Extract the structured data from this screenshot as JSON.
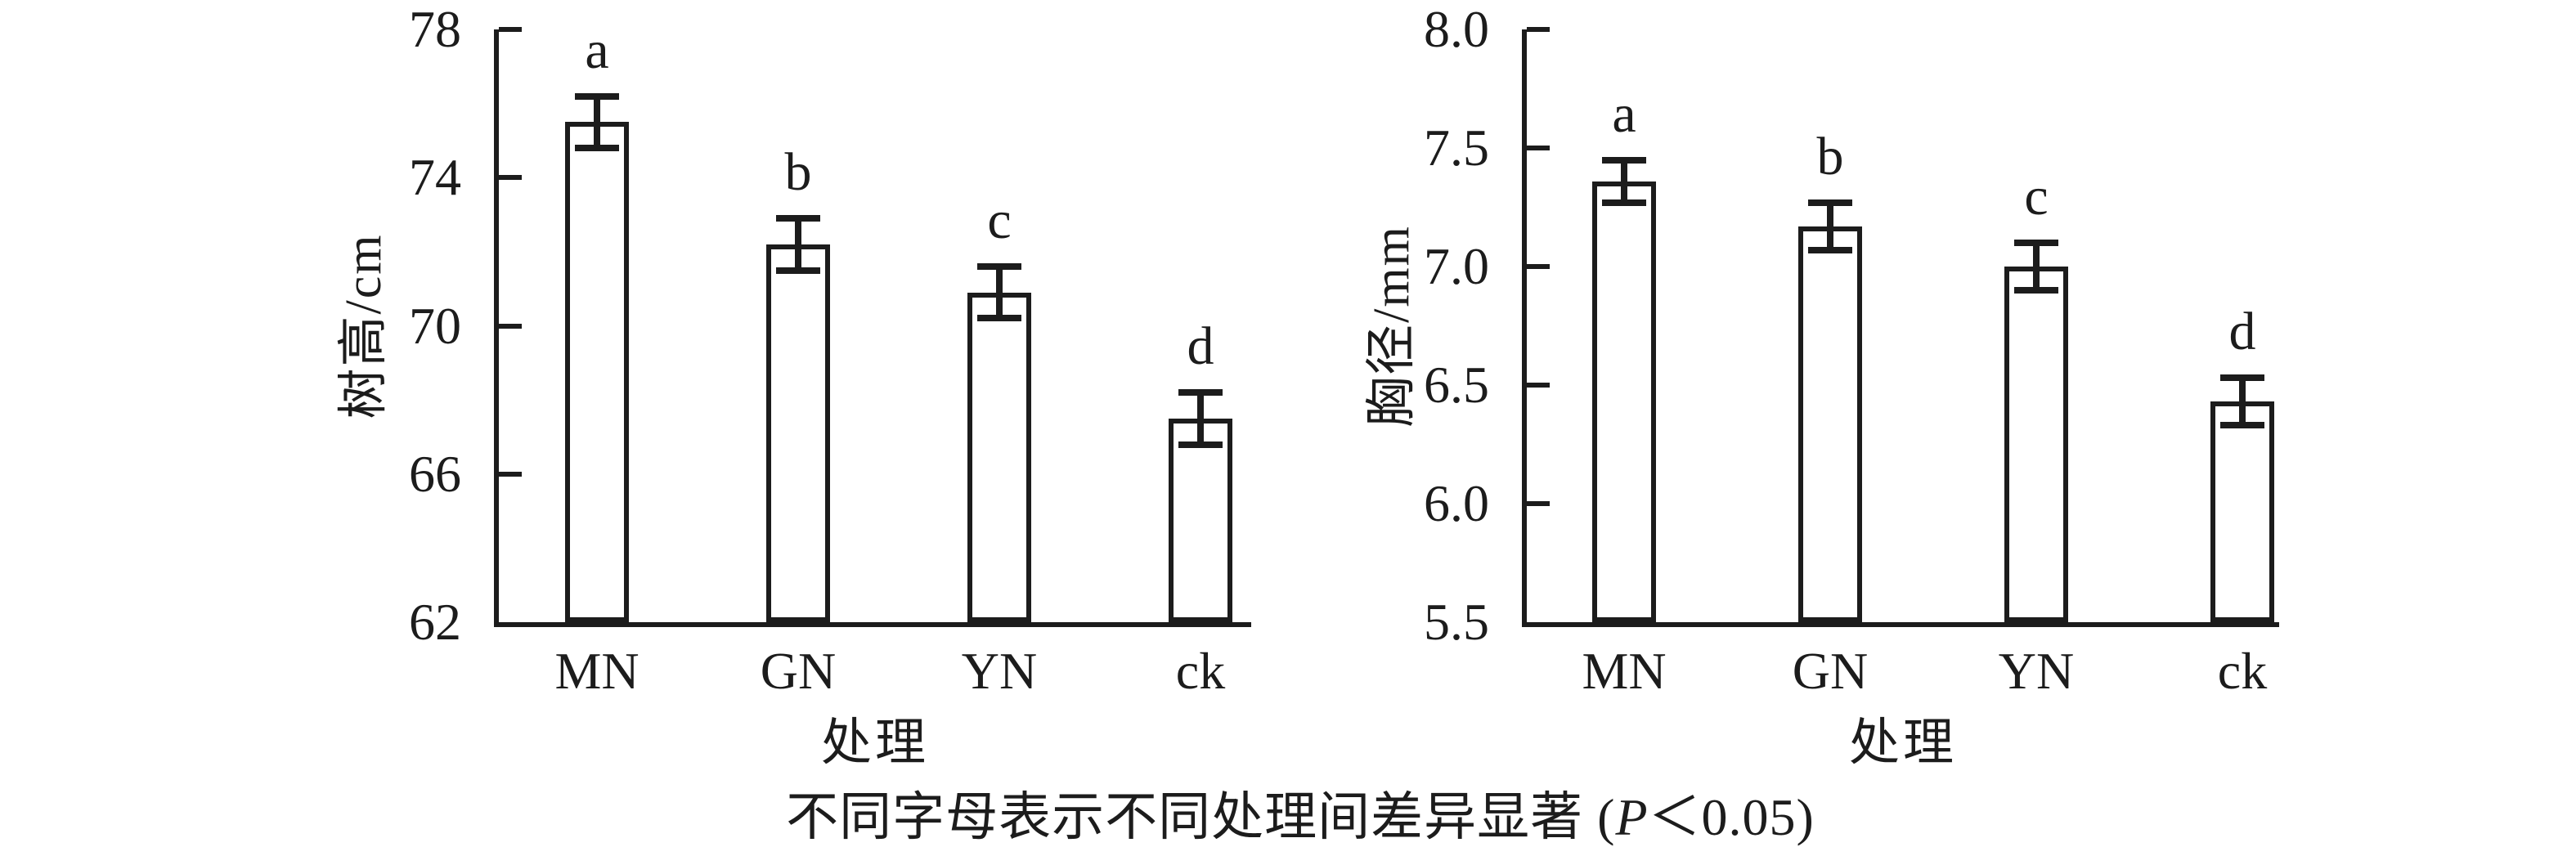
{
  "figure": {
    "background": "#ffffff",
    "ink": "#1c1c1c",
    "caption": {
      "prefix": "不同字母表示不同处理间差异显著 (",
      "p_italic": "P",
      "suffix": "＜0.05)"
    }
  },
  "chart_data": [
    {
      "type": "bar",
      "title": "",
      "ylabel": "树高/cm",
      "xlabel": "处理",
      "categories": [
        "MN",
        "GN",
        "YN",
        "ck"
      ],
      "values": [
        75.5,
        72.2,
        70.9,
        67.5
      ],
      "errors": [
        0.7,
        0.7,
        0.7,
        0.7
      ],
      "sig_letters": [
        "a",
        "b",
        "c",
        "d"
      ],
      "ylim": [
        62,
        78
      ],
      "ytick_values": [
        78,
        74,
        70,
        66,
        62
      ],
      "ytick_labels": [
        "78",
        "74",
        "70",
        "66",
        "62"
      ],
      "bar_fill": "#ffffff",
      "bar_edge": "#1c1c1c",
      "grid": false,
      "legend": "none"
    },
    {
      "type": "bar",
      "title": "",
      "ylabel": "胸径/mm",
      "xlabel": "处理",
      "categories": [
        "MN",
        "GN",
        "YN",
        "ck"
      ],
      "values": [
        7.36,
        7.17,
        7.0,
        6.43
      ],
      "errors": [
        0.09,
        0.1,
        0.1,
        0.1
      ],
      "sig_letters": [
        "a",
        "b",
        "c",
        "d"
      ],
      "ylim": [
        5.5,
        8.0
      ],
      "ytick_values": [
        8.0,
        7.5,
        7.0,
        6.5,
        6.0,
        5.5
      ],
      "ytick_labels": [
        "8.0",
        "7.5",
        "7.0",
        "6.5",
        "6.0",
        "5.5"
      ],
      "bar_fill": "#ffffff",
      "bar_edge": "#1c1c1c",
      "grid": false,
      "legend": "none"
    }
  ]
}
